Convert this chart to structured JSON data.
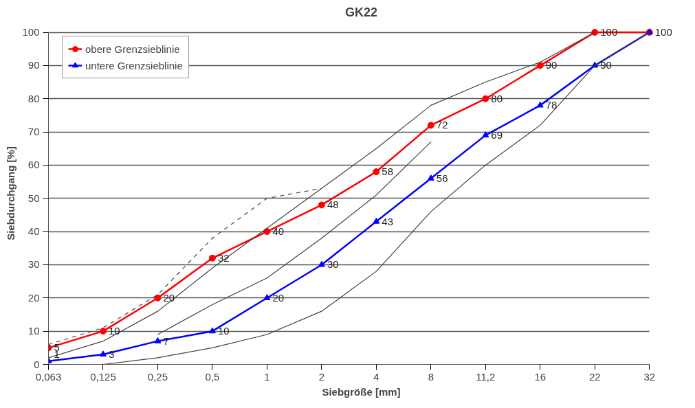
{
  "chart_data": {
    "type": "line",
    "title": "GK22",
    "xlabel": "Siebgröße [mm]",
    "ylabel": "Siebdurchgang [%]",
    "categories": [
      "0,063",
      "0,125",
      "0,25",
      "0,5",
      "1",
      "2",
      "4",
      "8",
      "11,2",
      "16",
      "22",
      "32"
    ],
    "ylim": [
      0,
      100
    ],
    "yticks": [
      0,
      10,
      20,
      30,
      40,
      50,
      60,
      70,
      80,
      90,
      100
    ],
    "grid": "y",
    "legend": "top left",
    "series": [
      {
        "name": "obere Grenzsieblinie",
        "color": "#ff0000",
        "marker": "circle",
        "values": [
          5,
          10,
          20,
          32,
          40,
          48,
          58,
          72,
          80,
          90,
          100,
          100
        ],
        "value_labels": [
          "5",
          "10",
          "20",
          "32",
          "40",
          "48",
          "58",
          "72",
          "80",
          "90",
          "100",
          null
        ]
      },
      {
        "name": "untere Grenzsieblinie",
        "color": "#0000ff",
        "marker": "triangle",
        "values": [
          1,
          3,
          7,
          10,
          20,
          30,
          43,
          56,
          69,
          78,
          90,
          100
        ],
        "value_labels": [
          "1",
          "3",
          "7",
          "10",
          "20",
          "30",
          "43",
          "56",
          "69",
          "78",
          "90",
          "100"
        ]
      },
      {
        "color": "#404040",
        "marker": "none",
        "line_style": "solid",
        "values": [
          2,
          7,
          16,
          29,
          41,
          53,
          65,
          78,
          85,
          91,
          100,
          null
        ]
      },
      {
        "color": "#404040",
        "marker": "none",
        "line_style": "solid",
        "values": [
          null,
          null,
          9,
          18,
          26,
          38,
          51,
          67,
          null,
          null,
          null,
          null
        ]
      },
      {
        "color": "#404040",
        "marker": "none",
        "line_style": "solid",
        "values": [
          null,
          0,
          2,
          5,
          9,
          16,
          28,
          46,
          60,
          72,
          90,
          100
        ]
      },
      {
        "color": "#404040",
        "marker": "none",
        "line_style": "dashed",
        "values": [
          6,
          11,
          21,
          38,
          50,
          53,
          null,
          null,
          null,
          null,
          null,
          null
        ]
      }
    ]
  }
}
